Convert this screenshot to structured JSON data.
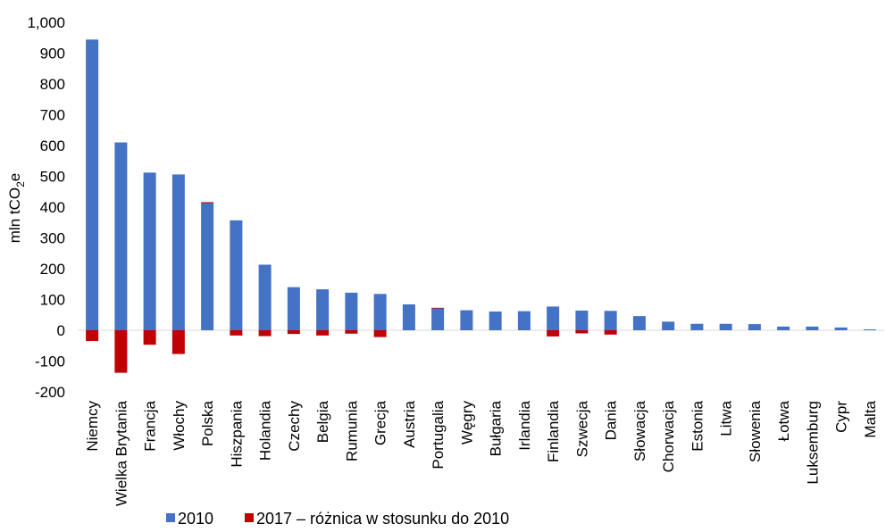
{
  "chart_data": {
    "type": "bar",
    "title": "",
    "ylabel": "mln tCO2e",
    "ylabel_parts": {
      "main": "mln tCO",
      "sub": "2",
      "suffix": "e"
    },
    "ylim": [
      -200,
      1000
    ],
    "yticks": [
      -200,
      -100,
      0,
      100,
      200,
      300,
      400,
      500,
      600,
      700,
      800,
      900,
      1000
    ],
    "ytick_labels": [
      "-200",
      "-100",
      "0",
      "100",
      "200",
      "300",
      "400",
      "500",
      "600",
      "700",
      "800",
      "900",
      "1,000"
    ],
    "grid": false,
    "legend_position": "bottom-left",
    "categories": [
      "Niemcy",
      "Wielka Brytania",
      "Francja",
      "Włochy",
      "Polska",
      "Hiszpania",
      "Holandia",
      "Czechy",
      "Belgia",
      "Rumunia",
      "Grecja",
      "Austria",
      "Portugalia",
      "Węgry",
      "Bułgaria",
      "Irlandia",
      "Finlandia",
      "Szwecja",
      "Dania",
      "Słowacja",
      "Chorwacja",
      "Estonia",
      "Litwa",
      "Słowenia",
      "Łotwa",
      "Luksemburg",
      "Cypr",
      "Malta"
    ],
    "series": [
      {
        "name": "2010",
        "color": "#4472c4",
        "values": [
          944,
          610,
          512,
          506,
          413,
          357,
          213,
          140,
          133,
          122,
          118,
          84,
          71,
          65,
          61,
          62,
          77,
          64,
          63,
          46,
          28,
          21,
          21,
          20,
          12,
          12,
          9,
          3
        ]
      },
      {
        "name": "2017 – różnica w stosunku do 2010",
        "color": "#c00000",
        "values": [
          -35,
          -138,
          -47,
          -77,
          3,
          -17,
          -19,
          -12,
          -17,
          -11,
          -22,
          0,
          2,
          0,
          0,
          0,
          -20,
          -10,
          -14,
          0,
          0,
          0,
          0,
          0,
          0,
          0,
          0,
          0
        ]
      }
    ]
  }
}
